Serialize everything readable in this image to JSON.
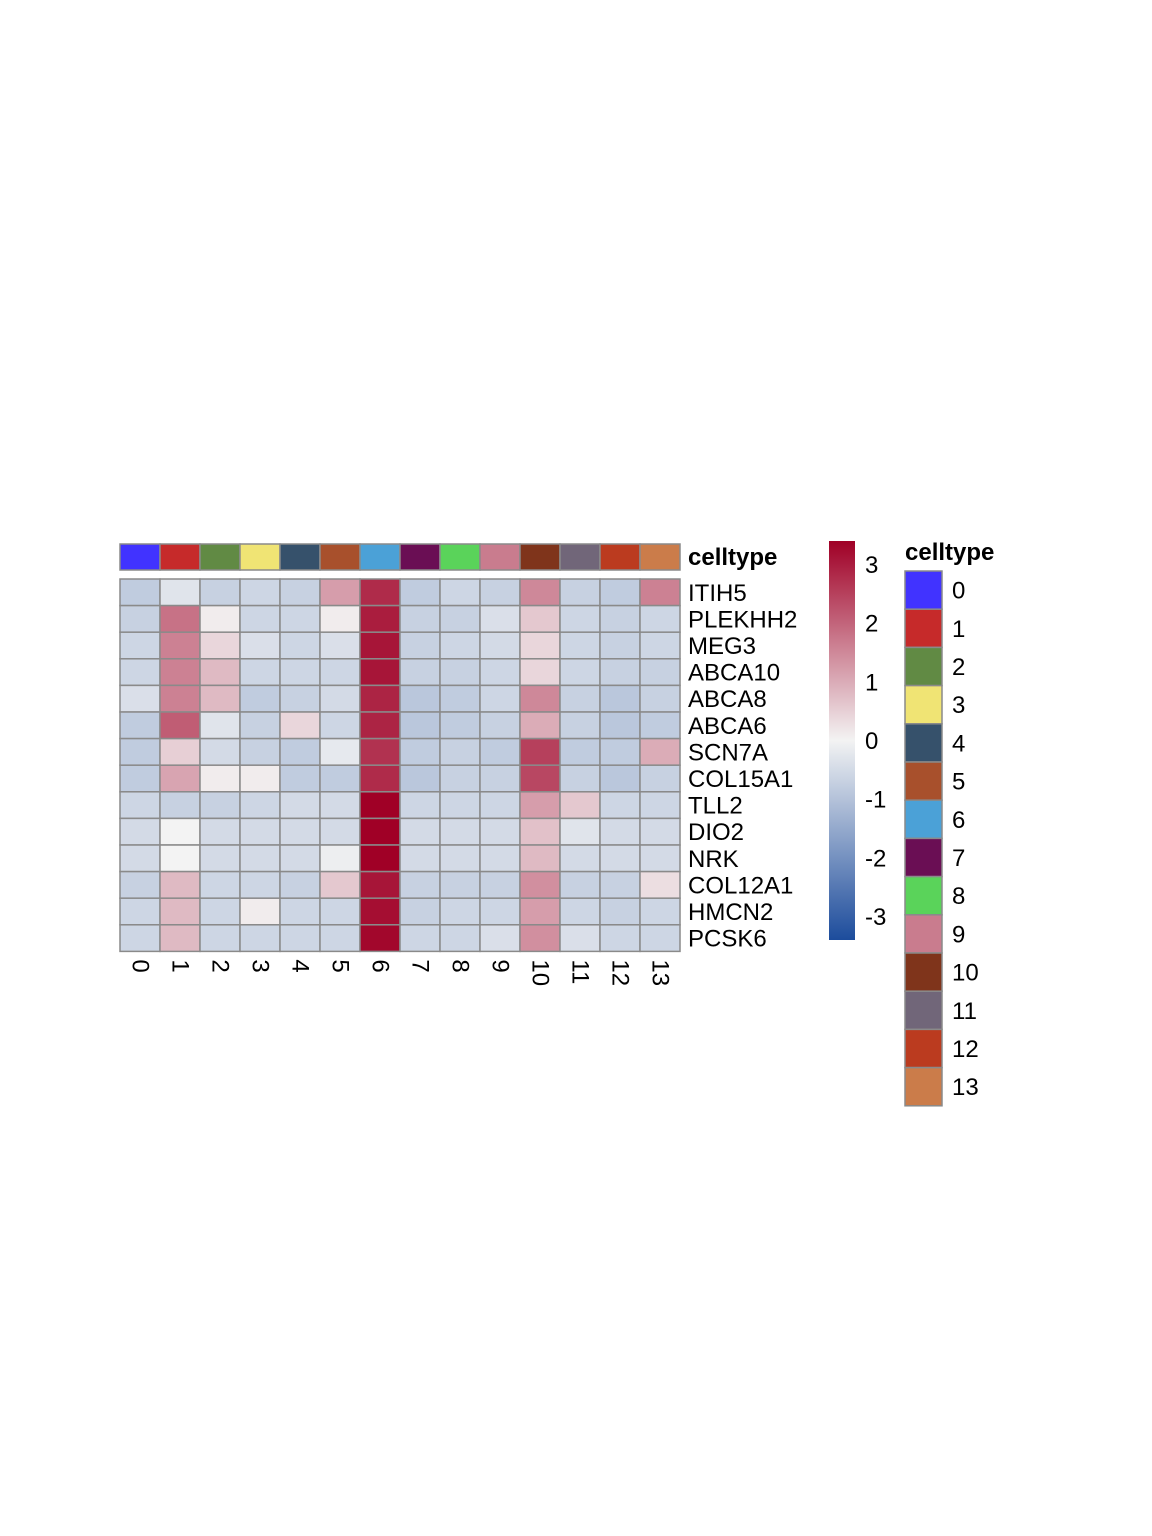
{
  "chart_data": {
    "type": "heatmap",
    "title": "",
    "xlabel": "",
    "ylabel": "",
    "columns": [
      "0",
      "1",
      "2",
      "3",
      "4",
      "5",
      "6",
      "7",
      "8",
      "9",
      "10",
      "11",
      "12",
      "13"
    ],
    "rows": [
      "ITIH5",
      "PLEKHH2",
      "MEG3",
      "ABCA10",
      "ABCA8",
      "ABCA6",
      "SCN7A",
      "COL15A1",
      "TLL2",
      "DIO2",
      "NRK",
      "COL12A1",
      "HMCN2",
      "PCSK6"
    ],
    "values": [
      [
        -0.8,
        -0.3,
        -0.7,
        -0.6,
        -0.7,
        1.2,
        2.8,
        -0.8,
        -0.6,
        -0.7,
        1.5,
        -0.7,
        -0.8,
        1.6
      ],
      [
        -0.7,
        1.8,
        0.1,
        -0.6,
        -0.6,
        0.1,
        3.0,
        -0.7,
        -0.7,
        -0.4,
        0.6,
        -0.6,
        -0.7,
        -0.6
      ],
      [
        -0.6,
        1.6,
        0.4,
        -0.4,
        -0.6,
        -0.4,
        3.1,
        -0.7,
        -0.6,
        -0.5,
        0.4,
        -0.6,
        -0.7,
        -0.6
      ],
      [
        -0.6,
        1.6,
        0.8,
        -0.6,
        -0.6,
        -0.6,
        3.1,
        -0.7,
        -0.7,
        -0.6,
        0.4,
        -0.6,
        -0.7,
        -0.7
      ],
      [
        -0.4,
        1.6,
        0.8,
        -0.8,
        -0.7,
        -0.5,
        2.9,
        -0.9,
        -0.8,
        -0.6,
        1.5,
        -0.7,
        -0.9,
        -0.7
      ],
      [
        -0.8,
        2.1,
        -0.3,
        -0.7,
        0.4,
        -0.6,
        2.9,
        -0.9,
        -0.8,
        -0.7,
        1.0,
        -0.7,
        -0.9,
        -0.8
      ],
      [
        -0.8,
        0.5,
        -0.5,
        -0.7,
        -0.8,
        -0.2,
        2.7,
        -0.8,
        -0.7,
        -0.8,
        2.5,
        -0.8,
        -0.8,
        1.0
      ],
      [
        -0.8,
        1.1,
        0.1,
        0.1,
        -0.8,
        -0.8,
        2.8,
        -0.9,
        -0.7,
        -0.7,
        2.4,
        -0.7,
        -0.9,
        -0.7
      ],
      [
        -0.6,
        -0.7,
        -0.7,
        -0.6,
        -0.5,
        -0.5,
        3.5,
        -0.6,
        -0.6,
        -0.6,
        1.2,
        0.6,
        -0.6,
        -0.6
      ],
      [
        -0.5,
        0.0,
        -0.5,
        -0.5,
        -0.5,
        -0.5,
        3.8,
        -0.5,
        -0.5,
        -0.5,
        0.7,
        -0.3,
        -0.5,
        -0.5
      ],
      [
        -0.5,
        0.0,
        -0.5,
        -0.5,
        -0.5,
        -0.1,
        3.8,
        -0.5,
        -0.5,
        -0.5,
        0.8,
        -0.5,
        -0.5,
        -0.5
      ],
      [
        -0.7,
        0.8,
        -0.6,
        -0.6,
        -0.7,
        0.6,
        3.1,
        -0.7,
        -0.7,
        -0.7,
        1.4,
        -0.7,
        -0.7,
        0.3
      ],
      [
        -0.6,
        0.8,
        -0.6,
        0.1,
        -0.6,
        -0.6,
        3.2,
        -0.7,
        -0.6,
        -0.6,
        1.2,
        -0.6,
        -0.7,
        -0.6
      ],
      [
        -0.6,
        0.8,
        -0.6,
        -0.6,
        -0.6,
        -0.6,
        3.3,
        -0.6,
        -0.6,
        -0.4,
        1.4,
        -0.4,
        -0.6,
        -0.6
      ]
    ],
    "color_scale": {
      "min": -3.4,
      "max": 3.4,
      "low": "#1c4c9c",
      "mid": "#f3f3f3",
      "high": "#a00026",
      "ticks": [
        3,
        2,
        1,
        0,
        -1,
        -2,
        -3
      ]
    },
    "annotation": {
      "name": "celltype",
      "levels": [
        "0",
        "1",
        "2",
        "3",
        "4",
        "5",
        "6",
        "7",
        "8",
        "9",
        "10",
        "11",
        "12",
        "13"
      ],
      "colors": [
        "#4133ff",
        "#c62a2a",
        "#618a44",
        "#f0e474",
        "#36516b",
        "#a8502c",
        "#4ba1d7",
        "#6a0e54",
        "#5ad35a",
        "#c97c8e",
        "#7f341b",
        "#716679",
        "#bb3b1f",
        "#cb7c4a"
      ]
    },
    "legend_placement": "right",
    "grid": true
  }
}
